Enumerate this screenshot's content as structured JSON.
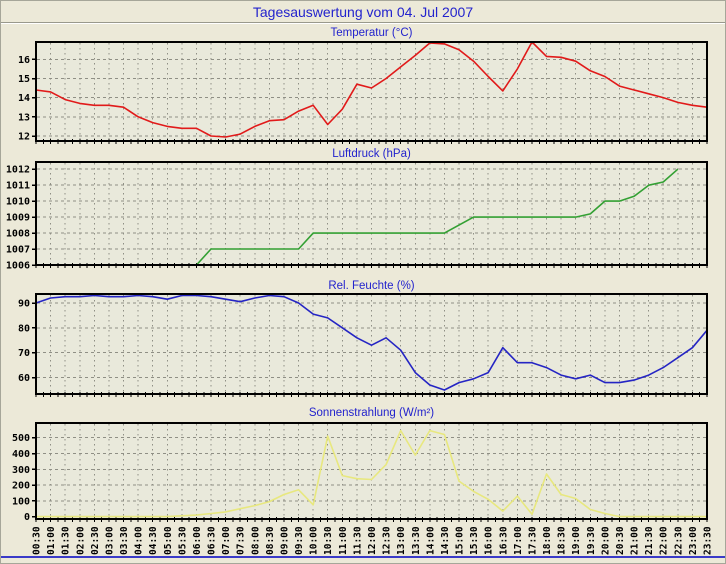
{
  "page": {
    "title": "Tagesauswertung vom 04. Jul 2007",
    "background": "#ece9d8",
    "plot_background": "#e9e9db",
    "title_color": "#2323cd",
    "grid_color": "#8f8f85",
    "frame_color": "#000000",
    "axis_label_color": "#000000",
    "bottom_rule_color": "#3a3ac8"
  },
  "x_categories": [
    "00:30",
    "01:00",
    "01:30",
    "02:00",
    "02:30",
    "03:00",
    "03:30",
    "04:00",
    "04:30",
    "05:00",
    "05:30",
    "06:00",
    "06:30",
    "07:00",
    "07:30",
    "08:00",
    "08:30",
    "09:00",
    "09:30",
    "10:00",
    "10:30",
    "11:00",
    "11:30",
    "12:00",
    "12:30",
    "13:00",
    "13:30",
    "14:00",
    "14:30",
    "15:00",
    "15:30",
    "16:00",
    "16:30",
    "17:00",
    "17:30",
    "18:00",
    "18:30",
    "19:00",
    "19:30",
    "20:00",
    "20:30",
    "21:00",
    "21:30",
    "22:00",
    "22:30",
    "23:00",
    "23:30"
  ],
  "chart_data": [
    {
      "name": "temperatur",
      "type": "line",
      "title": "Temperatur (°C)",
      "color": "#e11a1a",
      "grid": "dashed",
      "legend": "none",
      "yticks": [
        16,
        15,
        14,
        13,
        12
      ],
      "ylim": [
        11.74,
        16.9
      ],
      "values": [
        14.4,
        14.3,
        13.9,
        13.7,
        13.6,
        13.6,
        13.5,
        13.0,
        12.7,
        12.5,
        12.4,
        12.4,
        12.0,
        11.95,
        12.1,
        12.5,
        12.8,
        12.85,
        13.3,
        13.6,
        12.6,
        13.4,
        14.7,
        14.5,
        15.0,
        15.6,
        16.2,
        16.85,
        16.8,
        16.5,
        15.9,
        15.1,
        14.35,
        15.5,
        16.9,
        16.15,
        16.1,
        15.9,
        15.4,
        15.1,
        14.6,
        14.4,
        14.2,
        14.0,
        13.75,
        13.6,
        13.5
      ]
    },
    {
      "name": "luftdruck",
      "type": "line",
      "title": "Luftdruck (hPa)",
      "color": "#33a033",
      "grid": "dashed",
      "legend": "none",
      "yticks": [
        1012,
        1011,
        1010,
        1009,
        1008,
        1007,
        1006
      ],
      "ylim": [
        1006,
        1012.45
      ],
      "values": [
        1006,
        1006,
        1006,
        1006,
        1006,
        1006,
        1006,
        1006,
        1006,
        1006,
        1006,
        1006,
        1007,
        1007,
        1007,
        1007,
        1007,
        1007,
        1007,
        1008,
        1008,
        1008,
        1008,
        1008,
        1008,
        1008,
        1008,
        1008,
        1008,
        1008.5,
        1009,
        1009,
        1009,
        1009,
        1009,
        1009,
        1009,
        1009,
        1009.2,
        1010,
        1010,
        1010.3,
        1011,
        1011.2,
        1012,
        null,
        null
      ]
    },
    {
      "name": "rel-feuchte",
      "type": "line",
      "title": "Rel. Feuchte (%)",
      "color": "#2525c4",
      "grid": "dashed",
      "legend": "none",
      "yticks": [
        90,
        80,
        70,
        60
      ],
      "ylim": [
        53.4,
        93.6
      ],
      "values": [
        90,
        92,
        92.5,
        92.5,
        93,
        92.5,
        92.5,
        93,
        92.5,
        91.5,
        93,
        93,
        92.5,
        91.5,
        90.5,
        92,
        93,
        92.5,
        90,
        85.5,
        84,
        80,
        76,
        73,
        76,
        71,
        62,
        57,
        55,
        58,
        59.5,
        62,
        72,
        66,
        66,
        64,
        61,
        59.5,
        61,
        58,
        58,
        59,
        61,
        64,
        68,
        72,
        79
      ]
    },
    {
      "name": "sonnenstrahlung",
      "type": "line",
      "title": "Sonnenstrahlung (W/m²)",
      "color": "#e8e87e",
      "grid": "dashed",
      "legend": "none",
      "yticks": [
        500,
        400,
        300,
        200,
        100,
        0
      ],
      "ylim": [
        -15,
        593
      ],
      "values": [
        0,
        0,
        0,
        0,
        0,
        0,
        0,
        0,
        0,
        0,
        5,
        10,
        20,
        30,
        50,
        70,
        95,
        140,
        170,
        75,
        510,
        260,
        240,
        235,
        330,
        545,
        390,
        545,
        520,
        225,
        160,
        110,
        35,
        130,
        15,
        270,
        140,
        115,
        45,
        20,
        0,
        0,
        0,
        0,
        0,
        0,
        0
      ]
    }
  ]
}
